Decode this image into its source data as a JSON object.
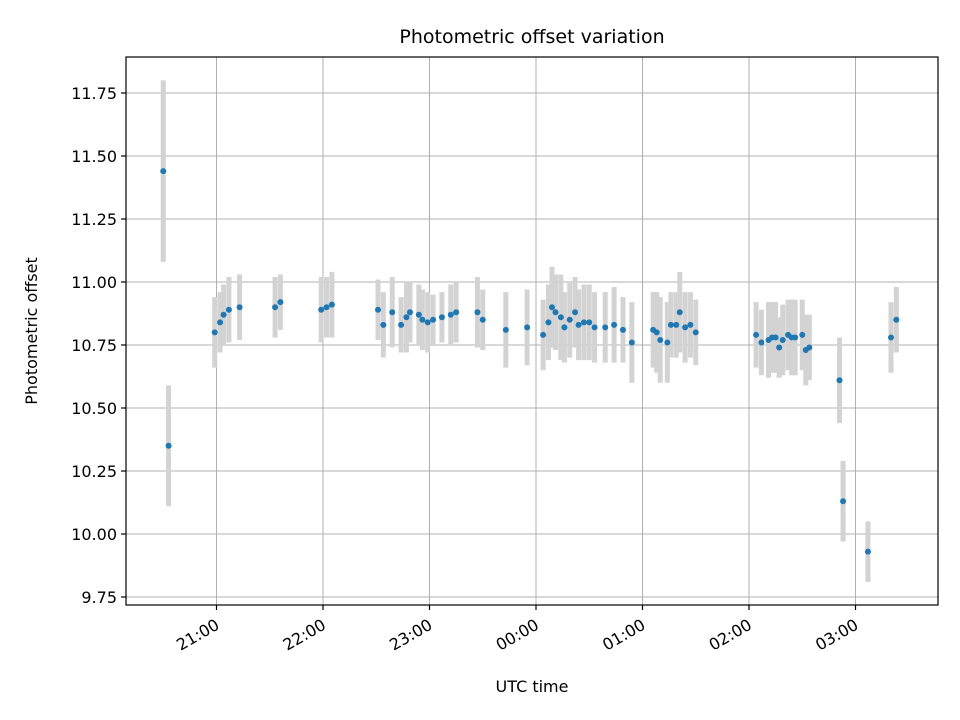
{
  "chart_data": {
    "type": "scatter",
    "title": "Photometric offset variation",
    "xlabel": "UTC time",
    "ylabel": "Photometric offset",
    "x_tick_labels": [
      "21:00",
      "22:00",
      "23:00",
      "00:00",
      "01:00",
      "02:00",
      "03:00"
    ],
    "y_tick_labels": [
      "9.75",
      "10.00",
      "10.25",
      "10.50",
      "10.75",
      "11.00",
      "11.25",
      "11.50",
      "11.75"
    ],
    "grid": true,
    "colors": {
      "point": "#1f77b4",
      "errorbar": "#d3d3d3",
      "grid": "#b0b0b0"
    },
    "series": [
      {
        "x": [
          "20:30",
          "20:33",
          "20:59",
          "21:02",
          "21:04",
          "21:07",
          "21:13",
          "21:33",
          "21:36",
          "21:59",
          "22:02",
          "22:05",
          "22:31",
          "22:34",
          "22:39",
          "22:44",
          "22:47",
          "22:49",
          "22:54",
          "22:56",
          "22:59",
          "23:02",
          "23:07",
          "23:12",
          "23:15",
          "23:27",
          "23:30",
          "23:43",
          "23:55",
          "00:04",
          "00:07",
          "00:09",
          "00:11",
          "00:14",
          "00:16",
          "00:19",
          "00:22",
          "00:24",
          "00:27",
          "00:30",
          "00:33",
          "00:39",
          "00:44",
          "00:49",
          "00:54",
          "01:06",
          "01:08",
          "01:10",
          "01:14",
          "01:16",
          "01:19",
          "01:21",
          "01:24",
          "01:27",
          "01:30",
          "02:04",
          "02:07",
          "02:11",
          "02:13",
          "02:15",
          "02:17",
          "02:19",
          "02:22",
          "02:24",
          "02:26",
          "02:30",
          "02:32",
          "02:34",
          "02:51",
          "02:53",
          "03:07",
          "03:20",
          "03:23"
        ],
        "y": [
          11.44,
          10.35,
          10.8,
          10.84,
          10.87,
          10.89,
          10.9,
          10.9,
          10.92,
          10.89,
          10.9,
          10.91,
          10.89,
          10.83,
          10.88,
          10.83,
          10.86,
          10.88,
          10.87,
          10.85,
          10.84,
          10.85,
          10.86,
          10.87,
          10.88,
          10.88,
          10.85,
          10.81,
          10.82,
          10.79,
          10.84,
          10.9,
          10.88,
          10.86,
          10.82,
          10.85,
          10.88,
          10.83,
          10.84,
          10.84,
          10.82,
          10.82,
          10.83,
          10.81,
          10.76,
          10.81,
          10.8,
          10.77,
          10.76,
          10.83,
          10.83,
          10.88,
          10.82,
          10.83,
          10.8,
          10.79,
          10.76,
          10.77,
          10.78,
          10.78,
          10.74,
          10.77,
          10.79,
          10.78,
          10.78,
          10.79,
          10.73,
          10.74,
          10.61,
          10.13,
          9.93,
          10.78,
          10.85
        ],
        "err": [
          0.36,
          0.24,
          0.14,
          0.12,
          0.12,
          0.13,
          0.13,
          0.12,
          0.11,
          0.13,
          0.12,
          0.13,
          0.12,
          0.13,
          0.14,
          0.11,
          0.14,
          0.12,
          0.12,
          0.12,
          0.12,
          0.1,
          0.1,
          0.12,
          0.12,
          0.14,
          0.12,
          0.15,
          0.15,
          0.14,
          0.15,
          0.16,
          0.15,
          0.17,
          0.14,
          0.15,
          0.14,
          0.14,
          0.15,
          0.15,
          0.14,
          0.14,
          0.15,
          0.13,
          0.16,
          0.15,
          0.16,
          0.17,
          0.16,
          0.13,
          0.13,
          0.16,
          0.14,
          0.13,
          0.13,
          0.13,
          0.13,
          0.15,
          0.14,
          0.14,
          0.12,
          0.14,
          0.14,
          0.15,
          0.15,
          0.14,
          0.14,
          0.13,
          0.17,
          0.16,
          0.12,
          0.14,
          0.13
        ]
      }
    ]
  }
}
